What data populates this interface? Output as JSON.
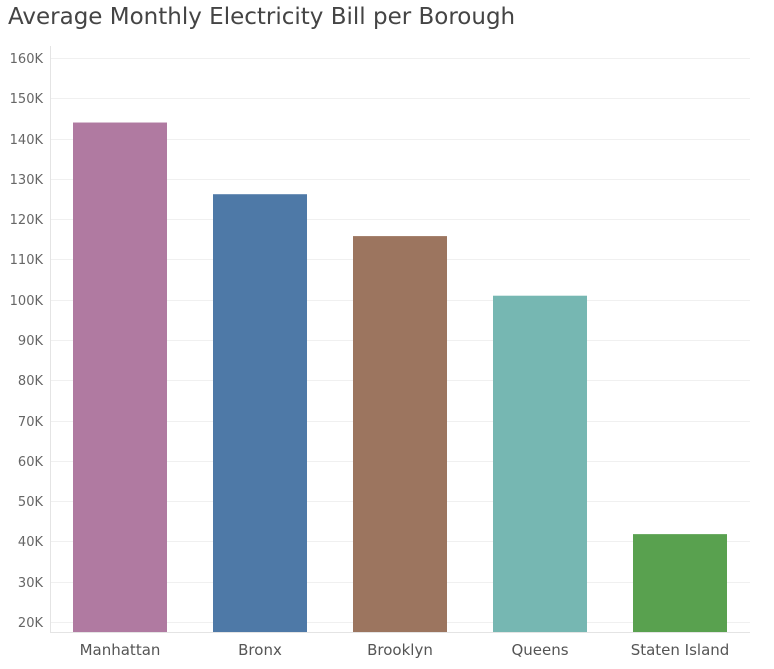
{
  "chart_data": {
    "type": "bar",
    "title": "Average Monthly Electricity Bill per Borough",
    "xlabel": "",
    "ylabel": "",
    "categories": [
      "Manhattan",
      "Bronx",
      "Brooklyn",
      "Queens",
      "Staten Island"
    ],
    "values": [
      144000,
      126200,
      115800,
      101000,
      41800
    ],
    "colors": [
      "#b07aa1",
      "#4e79a7",
      "#9c755f",
      "#76b7b2",
      "#59a14f"
    ],
    "y_ticks": [
      20000,
      30000,
      40000,
      50000,
      60000,
      70000,
      80000,
      90000,
      100000,
      110000,
      120000,
      130000,
      140000,
      150000,
      160000
    ],
    "y_tick_labels": [
      "20K",
      "30K",
      "40K",
      "50K",
      "60K",
      "70K",
      "80K",
      "90K",
      "100K",
      "110K",
      "120K",
      "130K",
      "140K",
      "150K",
      "160K"
    ],
    "ylim": [
      17500,
      163000
    ],
    "grid": true,
    "legend": "none"
  }
}
